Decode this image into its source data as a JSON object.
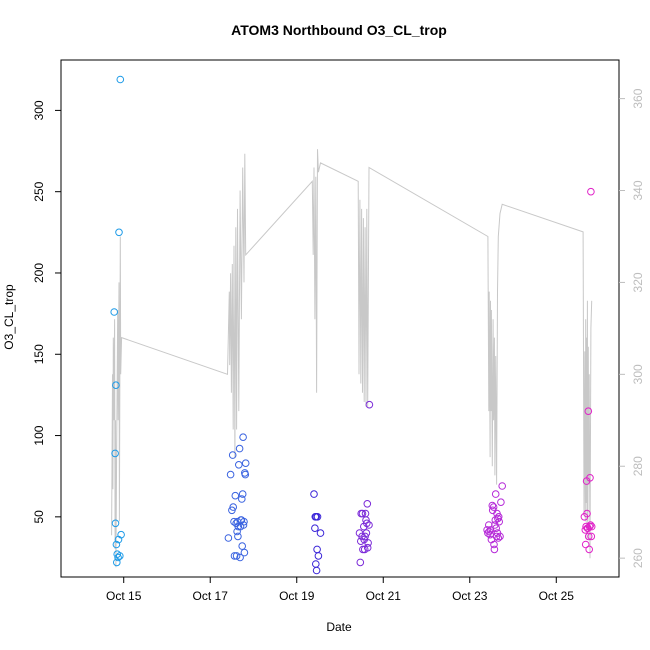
{
  "chart_data": {
    "type": "scatter",
    "title": "ATOM3 Northbound O3_CL_trop",
    "xlabel": "Date",
    "ylabel": "O3_CL_trop",
    "x_ticks": [
      {
        "day": 15,
        "label": "Oct 15"
      },
      {
        "day": 17,
        "label": "Oct 17"
      },
      {
        "day": 19,
        "label": "Oct 19"
      },
      {
        "day": 21,
        "label": "Oct 21"
      },
      {
        "day": 23,
        "label": "Oct 23"
      },
      {
        "day": 25,
        "label": "Oct 25"
      }
    ],
    "xlim": [
      13.55,
      26.45
    ],
    "ylim": [
      13,
      331
    ],
    "y_ticks": [
      50,
      100,
      150,
      200,
      250,
      300
    ],
    "y2_ticks": [
      260,
      280,
      300,
      320,
      340,
      360
    ],
    "y2lim": [
      255.9,
      368.4
    ],
    "grid": false,
    "colors": {
      "axis": "#000000",
      "right_axis": "#bdbdbd",
      "secondary_line": "#c8c8c8"
    },
    "series": [
      {
        "color": "#1e9be8",
        "points": [
          [
            14.78,
            176
          ],
          [
            14.8,
            89
          ],
          [
            14.81,
            46
          ],
          [
            14.82,
            131
          ],
          [
            14.83,
            33
          ],
          [
            14.84,
            22
          ],
          [
            14.85,
            27
          ],
          [
            14.87,
            25
          ],
          [
            14.88,
            36
          ],
          [
            14.89,
            225
          ],
          [
            14.91,
            26
          ],
          [
            14.92,
            319
          ],
          [
            14.94,
            39
          ]
        ]
      },
      {
        "color": "#3a63e0",
        "points": [
          [
            17.42,
            37
          ],
          [
            17.47,
            76
          ],
          [
            17.5,
            54
          ],
          [
            17.52,
            88
          ],
          [
            17.53,
            56
          ],
          [
            17.55,
            47
          ],
          [
            17.56,
            26
          ],
          [
            17.58,
            63
          ],
          [
            17.6,
            46
          ],
          [
            17.61,
            26
          ],
          [
            17.62,
            41
          ],
          [
            17.63,
            47
          ],
          [
            17.64,
            38
          ],
          [
            17.65,
            44
          ],
          [
            17.66,
            82
          ],
          [
            17.68,
            92
          ],
          [
            17.69,
            25
          ],
          [
            17.7,
            44
          ],
          [
            17.71,
            48
          ],
          [
            17.72,
            48
          ],
          [
            17.73,
            61
          ],
          [
            17.74,
            32
          ],
          [
            17.75,
            64
          ],
          [
            17.76,
            99
          ],
          [
            17.77,
            45
          ],
          [
            17.78,
            47
          ],
          [
            17.79,
            28
          ],
          [
            17.8,
            77
          ],
          [
            17.81,
            76
          ],
          [
            17.82,
            83
          ]
        ]
      },
      {
        "color": "#3a25d8",
        "points": [
          [
            19.4,
            64
          ],
          [
            19.42,
            43
          ],
          [
            19.43,
            50
          ],
          [
            19.44,
            21
          ],
          [
            19.45,
            50
          ],
          [
            19.46,
            17
          ],
          [
            19.47,
            30
          ],
          [
            19.48,
            50
          ],
          [
            19.5,
            26
          ],
          [
            19.55,
            40
          ]
        ]
      },
      {
        "color": "#7b2ad8",
        "points": [
          [
            20.45,
            40
          ],
          [
            20.47,
            22
          ],
          [
            20.48,
            35
          ],
          [
            20.49,
            52
          ],
          [
            20.51,
            38
          ],
          [
            20.52,
            52
          ],
          [
            20.53,
            30
          ],
          [
            20.55,
            44
          ],
          [
            20.56,
            36
          ],
          [
            20.57,
            30
          ],
          [
            20.58,
            38
          ],
          [
            20.59,
            52
          ],
          [
            20.6,
            48
          ],
          [
            20.61,
            40
          ],
          [
            20.62,
            46
          ],
          [
            20.63,
            58
          ],
          [
            20.64,
            31
          ],
          [
            20.65,
            34
          ],
          [
            20.67,
            45
          ],
          [
            20.68,
            119
          ]
        ]
      },
      {
        "color": "#b52ad8",
        "points": [
          [
            23.4,
            42
          ],
          [
            23.42,
            40
          ],
          [
            23.44,
            45
          ],
          [
            23.45,
            41
          ],
          [
            23.47,
            39
          ],
          [
            23.48,
            42
          ],
          [
            23.5,
            36
          ],
          [
            23.52,
            57
          ],
          [
            23.53,
            54
          ],
          [
            23.55,
            56
          ],
          [
            23.56,
            33
          ],
          [
            23.57,
            30
          ],
          [
            23.58,
            45
          ],
          [
            23.59,
            48
          ],
          [
            23.6,
            64
          ],
          [
            23.61,
            43
          ],
          [
            23.62,
            38
          ],
          [
            23.63,
            52
          ],
          [
            23.64,
            40
          ],
          [
            23.65,
            49
          ],
          [
            23.66,
            37
          ],
          [
            23.67,
            50
          ],
          [
            23.68,
            47
          ],
          [
            23.7,
            38
          ],
          [
            23.72,
            59
          ],
          [
            23.75,
            69
          ]
        ]
      },
      {
        "color": "#e022c8",
        "points": [
          [
            25.65,
            50
          ],
          [
            25.67,
            42
          ],
          [
            25.68,
            33
          ],
          [
            25.69,
            44
          ],
          [
            25.7,
            72
          ],
          [
            25.71,
            52
          ],
          [
            25.72,
            43
          ],
          [
            25.73,
            43
          ],
          [
            25.74,
            115
          ],
          [
            25.75,
            38
          ],
          [
            25.76,
            30
          ],
          [
            25.77,
            44
          ],
          [
            25.78,
            74
          ],
          [
            25.79,
            45
          ],
          [
            25.8,
            250
          ],
          [
            25.81,
            38
          ],
          [
            25.82,
            44
          ]
        ]
      }
    ],
    "secondary_line": {
      "axis": "right",
      "color": "#c8c8c8",
      "points": [
        [
          14.72,
          265
        ],
        [
          14.74,
          300
        ],
        [
          14.75,
          275
        ],
        [
          14.76,
          308
        ],
        [
          14.77,
          290
        ],
        [
          14.79,
          312
        ],
        [
          14.8,
          262
        ],
        [
          14.81,
          290
        ],
        [
          14.82,
          258
        ],
        [
          14.84,
          288
        ],
        [
          14.86,
          314
        ],
        [
          14.87,
          290
        ],
        [
          14.89,
          320
        ],
        [
          14.9,
          268
        ],
        [
          14.92,
          330
        ],
        [
          14.93,
          300
        ],
        [
          14.95,
          308
        ],
        [
          17.4,
          300
        ],
        [
          17.44,
          318
        ],
        [
          17.45,
          302
        ],
        [
          17.47,
          322
        ],
        [
          17.49,
          296
        ],
        [
          17.51,
          324
        ],
        [
          17.53,
          288
        ],
        [
          17.55,
          328
        ],
        [
          17.57,
          282
        ],
        [
          17.59,
          332
        ],
        [
          17.61,
          288
        ],
        [
          17.63,
          336
        ],
        [
          17.66,
          292
        ],
        [
          17.69,
          340
        ],
        [
          17.72,
          312
        ],
        [
          17.75,
          345
        ],
        [
          17.78,
          320
        ],
        [
          17.8,
          348
        ],
        [
          17.82,
          326
        ],
        [
          19.36,
          342
        ],
        [
          19.38,
          326
        ],
        [
          19.4,
          345
        ],
        [
          19.42,
          312
        ],
        [
          19.44,
          343
        ],
        [
          19.46,
          296
        ],
        [
          19.48,
          349
        ],
        [
          19.5,
          344
        ],
        [
          19.55,
          346
        ],
        [
          20.42,
          342
        ],
        [
          20.44,
          300
        ],
        [
          20.46,
          338
        ],
        [
          20.48,
          298
        ],
        [
          20.5,
          336
        ],
        [
          20.52,
          296
        ],
        [
          20.54,
          334
        ],
        [
          20.56,
          294
        ],
        [
          20.58,
          332
        ],
        [
          20.6,
          293
        ],
        [
          20.62,
          336
        ],
        [
          20.64,
          293
        ],
        [
          20.67,
          345
        ],
        [
          23.42,
          330
        ],
        [
          23.44,
          292
        ],
        [
          23.45,
          318
        ],
        [
          23.47,
          282
        ],
        [
          23.48,
          316
        ],
        [
          23.49,
          292
        ],
        [
          23.5,
          314
        ],
        [
          23.52,
          280
        ],
        [
          23.54,
          312
        ],
        [
          23.55,
          290
        ],
        [
          23.57,
          308
        ],
        [
          23.58,
          278
        ],
        [
          23.6,
          304
        ],
        [
          23.62,
          276
        ],
        [
          23.64,
          318
        ],
        [
          23.66,
          330
        ],
        [
          23.7,
          335
        ],
        [
          23.75,
          337
        ],
        [
          25.62,
          331
        ],
        [
          25.64,
          270
        ],
        [
          25.66,
          305
        ],
        [
          25.67,
          268
        ],
        [
          25.68,
          312
        ],
        [
          25.69,
          272
        ],
        [
          25.7,
          308
        ],
        [
          25.71,
          264
        ],
        [
          25.72,
          316
        ],
        [
          25.73,
          268
        ],
        [
          25.74,
          306
        ],
        [
          25.75,
          276
        ],
        [
          25.76,
          300
        ],
        [
          25.78,
          260
        ],
        [
          25.8,
          310
        ],
        [
          25.82,
          316
        ]
      ]
    }
  }
}
